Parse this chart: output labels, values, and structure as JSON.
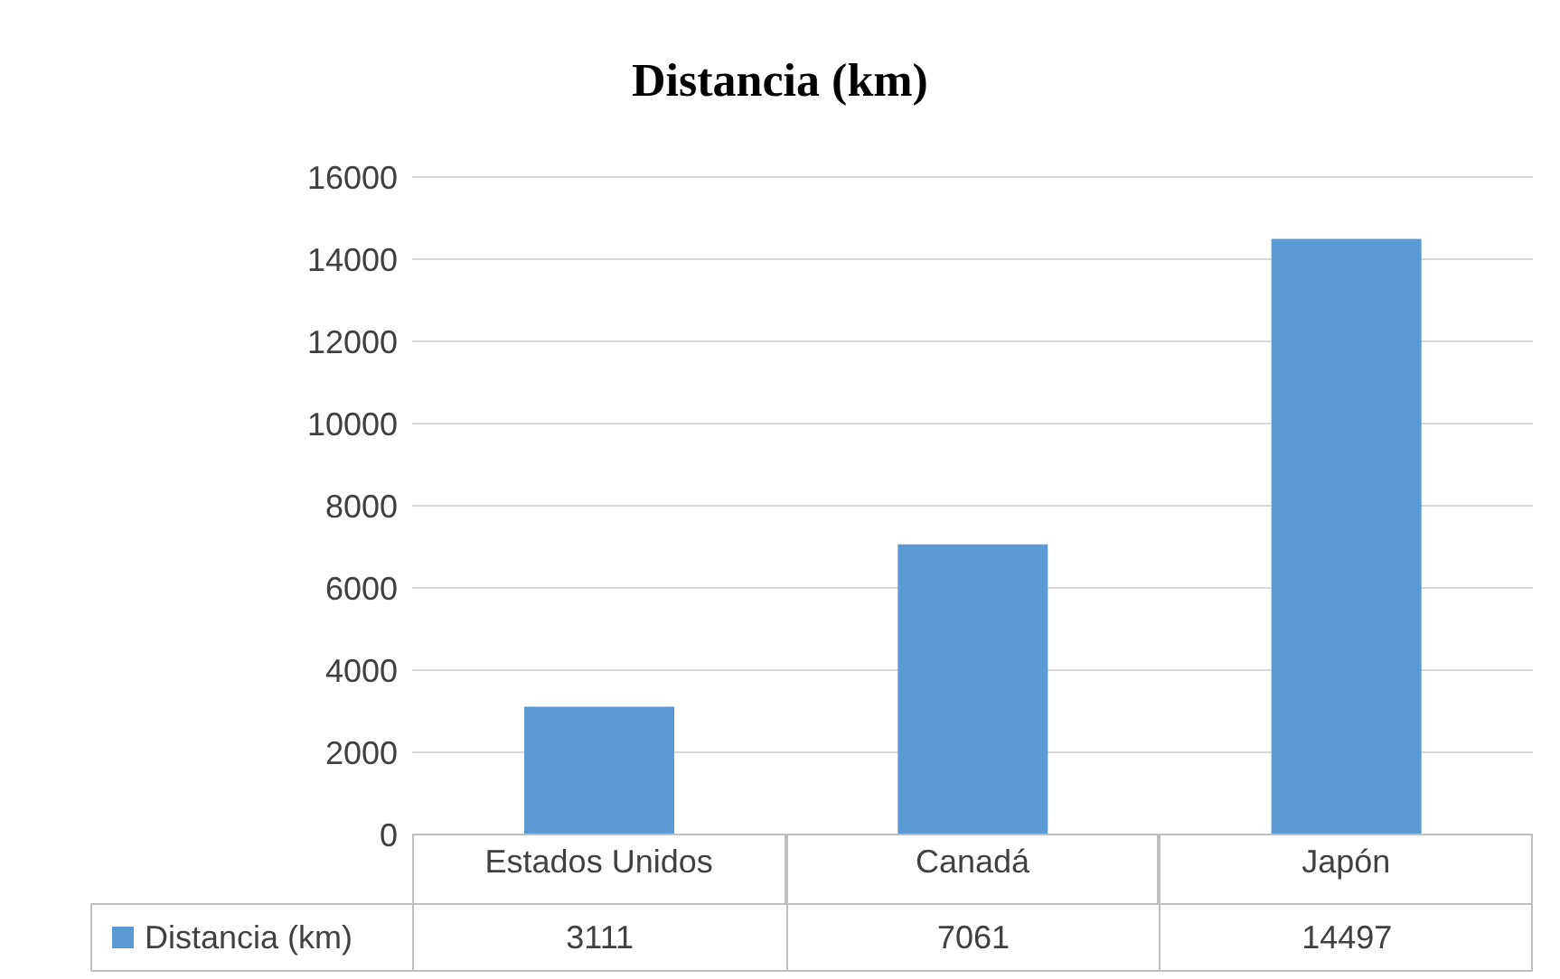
{
  "chart_data": {
    "type": "bar",
    "title": "Distancia (km)",
    "categories": [
      "Estados Unidos",
      "Canadá",
      "Japón"
    ],
    "series": [
      {
        "name": "Distancia (km)",
        "color": "#5b9bd5",
        "values": [
          3111,
          7061,
          14497
        ]
      }
    ],
    "ylim": [
      0,
      16000
    ],
    "yticks": [
      0,
      2000,
      4000,
      6000,
      8000,
      10000,
      12000,
      14000,
      16000
    ],
    "grid": "y",
    "legend": "bottom",
    "data_labels": true
  }
}
